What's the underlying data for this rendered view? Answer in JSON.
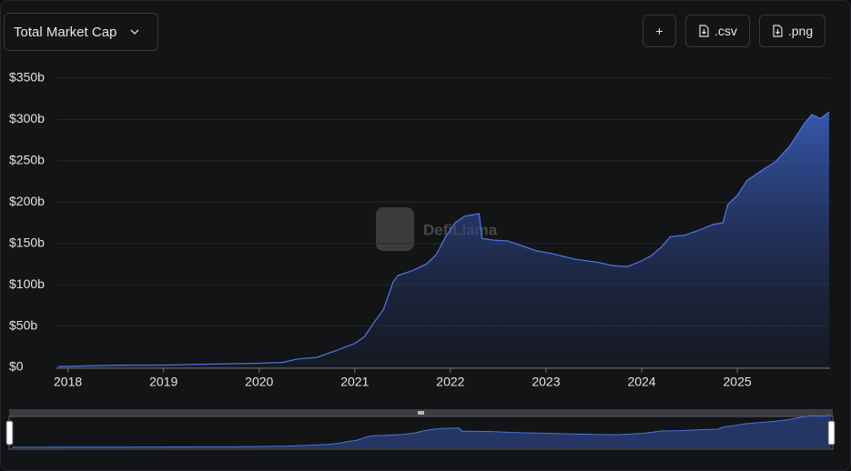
{
  "ui": {
    "dropdown": "Total Market Cap",
    "buttons": [
      "+",
      ".csv",
      ".png"
    ],
    "watermark": "DefiLlama"
  },
  "chart_data": {
    "type": "area",
    "color": "#4a74dc",
    "x": [
      2017.9,
      2018.5,
      2019.0,
      2019.5,
      2020.0,
      2020.25,
      2020.4,
      2020.6,
      2020.8,
      2021.0,
      2021.1,
      2021.2,
      2021.3,
      2021.4,
      2021.45,
      2021.6,
      2021.75,
      2021.85,
      2021.95,
      2022.05,
      2022.15,
      2022.3,
      2022.33,
      2022.45,
      2022.6,
      2022.75,
      2022.9,
      2023.05,
      2023.3,
      2023.55,
      2023.7,
      2023.85,
      2024.0,
      2024.1,
      2024.2,
      2024.3,
      2024.45,
      2024.6,
      2024.75,
      2024.85,
      2024.9,
      2025.0,
      2025.1,
      2025.25,
      2025.4,
      2025.55,
      2025.7,
      2025.78,
      2025.87,
      2025.96
    ],
    "values": [
      1,
      2.5,
      2.7,
      4,
      5,
      6,
      10,
      12,
      20,
      29,
      37,
      54,
      70,
      103,
      111,
      117,
      125,
      136,
      158,
      175,
      183,
      186,
      156,
      154,
      153,
      147,
      141,
      138,
      131,
      127,
      123,
      122,
      129,
      135,
      145,
      158,
      160,
      166,
      173,
      175,
      197,
      208,
      226,
      238,
      249,
      268,
      295,
      306,
      301,
      309
    ],
    "xlim": [
      2017.88,
      2025.97
    ],
    "xticks": [
      2018,
      2019,
      2020,
      2021,
      2022,
      2023,
      2024,
      2025
    ],
    "ylim": [
      0,
      350
    ],
    "yticks": [
      {
        "value": 0,
        "label": "$0"
      },
      {
        "value": 50,
        "label": "$50b"
      },
      {
        "value": 100,
        "label": "$100b"
      },
      {
        "value": 150,
        "label": "$150b"
      },
      {
        "value": 200,
        "label": "$200b"
      },
      {
        "value": 250,
        "label": "$250b"
      },
      {
        "value": 300,
        "label": "$300b"
      },
      {
        "value": 350,
        "label": "$350b"
      }
    ],
    "grid": true
  }
}
